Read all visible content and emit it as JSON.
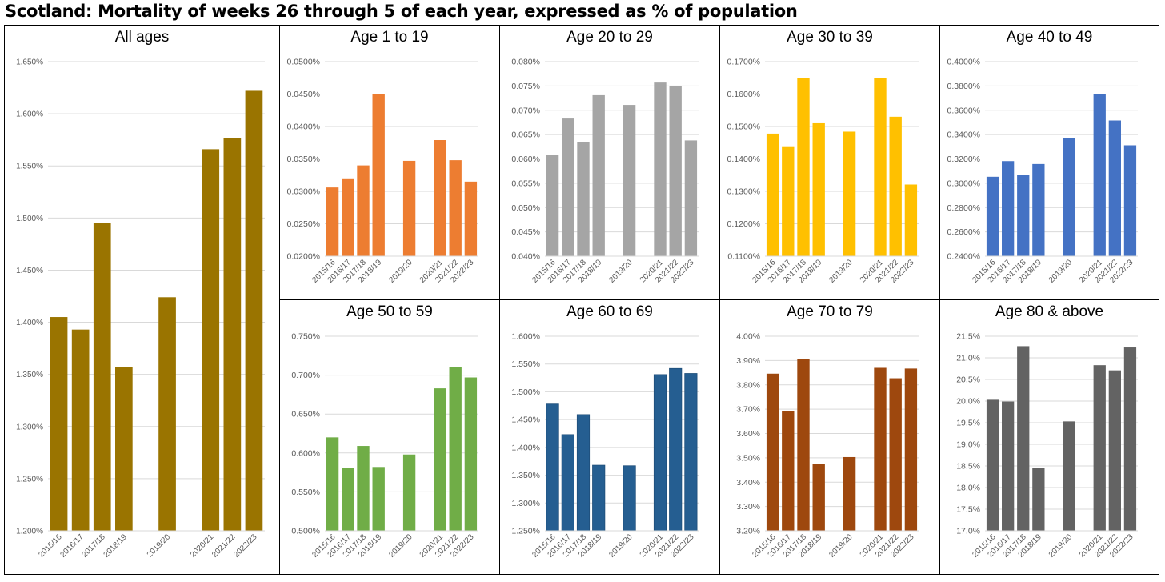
{
  "title": "Scotland: Mortality of weeks 26 through 5 of each year, expressed as % of population",
  "chart_data": [
    {
      "type": "bar",
      "title": "All ages",
      "color": "#9a7400",
      "categories": [
        "2015/16",
        "2016/17",
        "2017/18",
        "2018/19",
        "",
        "2019/20",
        "",
        "2020/21",
        "2021/22",
        "2022/23"
      ],
      "values": [
        1.405,
        1.393,
        1.495,
        1.357,
        null,
        1.424,
        null,
        1.566,
        1.577,
        1.622
      ],
      "ylim": [
        1.2,
        1.65
      ],
      "yticks": [
        1.2,
        1.25,
        1.3,
        1.35,
        1.4,
        1.45,
        1.5,
        1.55,
        1.6,
        1.65
      ],
      "ytick_labels": [
        "1.200%",
        "1.250%",
        "1.300%",
        "1.350%",
        "1.400%",
        "1.450%",
        "1.500%",
        "1.550%",
        "1.600%",
        "1.650%"
      ],
      "xlabel": "",
      "ylabel": "",
      "grid": true
    },
    {
      "type": "bar",
      "title": "Age 1 to 19",
      "color": "#ed7d31",
      "categories": [
        "2015/16",
        "2016/17",
        "2017/18",
        "2018/19",
        "",
        "2019/20",
        "",
        "2020/21",
        "2021/22",
        "2022/23"
      ],
      "values": [
        0.0306,
        0.032,
        0.034,
        0.045,
        null,
        0.0347,
        null,
        0.0379,
        0.0348,
        0.0315
      ],
      "ylim": [
        0.02,
        0.05
      ],
      "yticks": [
        0.02,
        0.025,
        0.03,
        0.035,
        0.04,
        0.045,
        0.05
      ],
      "ytick_labels": [
        "0.0200%",
        "0.0250%",
        "0.0300%",
        "0.0350%",
        "0.0400%",
        "0.0450%",
        "0.0500%"
      ],
      "xlabel": "",
      "ylabel": "",
      "grid": true
    },
    {
      "type": "bar",
      "title": "Age 20 to 29",
      "color": "#a5a5a5",
      "categories": [
        "2015/16",
        "2016/17",
        "2017/18",
        "2018/19",
        "",
        "2019/20",
        "",
        "2020/21",
        "2021/22",
        "2022/23"
      ],
      "values": [
        0.0608,
        0.0683,
        0.0634,
        0.0731,
        null,
        0.0711,
        null,
        0.0757,
        0.0749,
        0.0638
      ],
      "ylim": [
        0.04,
        0.08
      ],
      "yticks": [
        0.04,
        0.045,
        0.05,
        0.055,
        0.06,
        0.065,
        0.07,
        0.075,
        0.08
      ],
      "ytick_labels": [
        "0.040%",
        "0.045%",
        "0.050%",
        "0.055%",
        "0.060%",
        "0.065%",
        "0.070%",
        "0.075%",
        "0.080%"
      ],
      "xlabel": "",
      "ylabel": "",
      "grid": true
    },
    {
      "type": "bar",
      "title": "Age 30 to 39",
      "color": "#ffc000",
      "categories": [
        "2015/16",
        "2016/17",
        "2017/18",
        "2018/19",
        "",
        "2019/20",
        "",
        "2020/21",
        "2021/22",
        "2022/23"
      ],
      "values": [
        0.1478,
        0.1439,
        0.165,
        0.151,
        null,
        0.1484,
        null,
        0.165,
        0.153,
        0.1321
      ],
      "ylim": [
        0.11,
        0.17
      ],
      "yticks": [
        0.11,
        0.12,
        0.13,
        0.14,
        0.15,
        0.16,
        0.17
      ],
      "ytick_labels": [
        "0.1100%",
        "0.1200%",
        "0.1300%",
        "0.1400%",
        "0.1500%",
        "0.1600%",
        "0.1700%"
      ],
      "xlabel": "",
      "ylabel": "",
      "grid": true
    },
    {
      "type": "bar",
      "title": "Age 40 to 49",
      "color": "#4472c4",
      "categories": [
        "2015/16",
        "2016/17",
        "2017/18",
        "2018/19",
        "",
        "2019/20",
        "",
        "2020/21",
        "2021/22",
        "2022/23"
      ],
      "values": [
        0.3053,
        0.3182,
        0.3071,
        0.3158,
        null,
        0.3369,
        null,
        0.3736,
        0.3516,
        0.3312
      ],
      "ylim": [
        0.24,
        0.4
      ],
      "yticks": [
        0.24,
        0.26,
        0.28,
        0.3,
        0.32,
        0.34,
        0.36,
        0.38,
        0.4
      ],
      "ytick_labels": [
        "0.2400%",
        "0.2600%",
        "0.2800%",
        "0.3000%",
        "0.3200%",
        "0.3400%",
        "0.3600%",
        "0.3800%",
        "0.4000%"
      ],
      "xlabel": "",
      "ylabel": "",
      "grid": true
    },
    {
      "type": "bar",
      "title": "Age 50 to 59",
      "color": "#70ad47",
      "categories": [
        "2015/16",
        "2016/17",
        "2017/18",
        "2018/19",
        "",
        "2019/20",
        "",
        "2020/21",
        "2021/22",
        "2022/23"
      ],
      "values": [
        0.62,
        0.581,
        0.609,
        0.582,
        null,
        0.598,
        null,
        0.683,
        0.71,
        0.697
      ],
      "ylim": [
        0.5,
        0.75
      ],
      "yticks": [
        0.5,
        0.55,
        0.6,
        0.65,
        0.7,
        0.75
      ],
      "ytick_labels": [
        "0.500%",
        "0.550%",
        "0.600%",
        "0.650%",
        "0.700%",
        "0.750%"
      ],
      "xlabel": "",
      "ylabel": "",
      "grid": true
    },
    {
      "type": "bar",
      "title": "Age 60 to 69",
      "color": "#255e91",
      "categories": [
        "2015/16",
        "2016/17",
        "2017/18",
        "2018/19",
        "",
        "2019/20",
        "",
        "2020/21",
        "2021/22",
        "2022/23"
      ],
      "values": [
        1.478,
        1.423,
        1.459,
        1.368,
        null,
        1.367,
        null,
        1.531,
        1.542,
        1.533
      ],
      "ylim": [
        1.25,
        1.6
      ],
      "yticks": [
        1.25,
        1.3,
        1.35,
        1.4,
        1.45,
        1.5,
        1.55,
        1.6
      ],
      "ytick_labels": [
        "1.250%",
        "1.300%",
        "1.350%",
        "1.400%",
        "1.450%",
        "1.500%",
        "1.550%",
        "1.600%"
      ],
      "xlabel": "",
      "ylabel": "",
      "grid": true
    },
    {
      "type": "bar",
      "title": "Age 70 to 79",
      "color": "#9e480e",
      "categories": [
        "2015/16",
        "2016/17",
        "2017/18",
        "2018/19",
        "",
        "2019/20",
        "",
        "2020/21",
        "2021/22",
        "2022/23"
      ],
      "values": [
        3.846,
        3.693,
        3.906,
        3.476,
        null,
        3.503,
        null,
        3.87,
        3.827,
        3.867
      ],
      "ylim": [
        3.2,
        4.0
      ],
      "yticks": [
        3.2,
        3.3,
        3.4,
        3.5,
        3.6,
        3.7,
        3.8,
        3.9,
        4.0
      ],
      "ytick_labels": [
        "3.20%",
        "3.30%",
        "3.40%",
        "3.50%",
        "3.60%",
        "3.70%",
        "3.80%",
        "3.90%",
        "4.00%"
      ],
      "xlabel": "",
      "ylabel": "",
      "grid": true
    },
    {
      "type": "bar",
      "title": "Age 80 & above",
      "color": "#636363",
      "categories": [
        "2015/16",
        "2016/17",
        "2017/18",
        "2018/19",
        "",
        "2019/20",
        "",
        "2020/21",
        "2021/22",
        "2022/23"
      ],
      "values": [
        20.03,
        19.99,
        21.27,
        18.45,
        null,
        19.53,
        null,
        20.83,
        20.71,
        21.24
      ],
      "ylim": [
        17.0,
        21.5
      ],
      "yticks": [
        17.0,
        17.5,
        18.0,
        18.5,
        19.0,
        19.5,
        20.0,
        20.5,
        21.0,
        21.5
      ],
      "ytick_labels": [
        "17.0%",
        "17.5%",
        "18.0%",
        "18.5%",
        "19.0%",
        "19.5%",
        "20.0%",
        "20.5%",
        "21.0%",
        "21.5%"
      ],
      "xlabel": "",
      "ylabel": "",
      "grid": true
    }
  ]
}
